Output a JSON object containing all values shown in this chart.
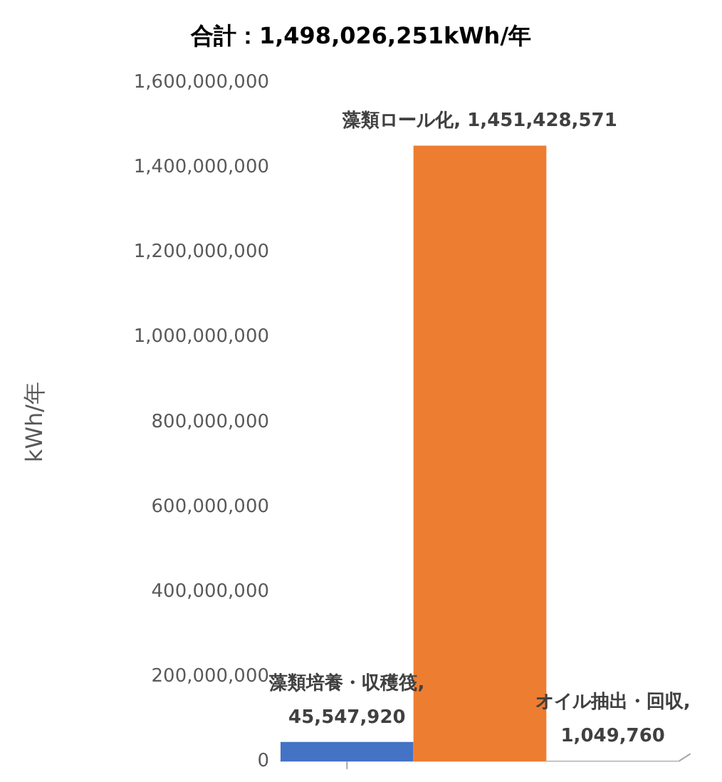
{
  "chart_data": {
    "type": "bar",
    "title": "合計：1,498,026,251kWh/年",
    "ylabel": "kWh/年",
    "categories": [
      null,
      null,
      null
    ],
    "values": [
      45547920,
      1451428571,
      1049760
    ],
    "value_labels": [
      "藻類培養・収穫筏, 45,547,920",
      "藻類ロール化, 1,451,428,571",
      "オイル抽出・回収, 1,049,760"
    ],
    "colors": [
      "#4472c4",
      "#ed7d31",
      "#a5a5a5"
    ],
    "ylim": [
      0,
      1600000000
    ],
    "yticks": [
      0,
      {
        "value": 200000000,
        "label": "200,000,000"
      },
      {
        "value": 400000000,
        "label": "400,000,000"
      },
      {
        "value": 600000000,
        "label": "600,000,000"
      },
      {
        "value": 800000000,
        "label": "800,000,000"
      },
      {
        "value": 1000000000,
        "label": "1,000,000,000"
      },
      {
        "value": 1200000000,
        "label": "1,200,000,000"
      },
      {
        "value": 1400000000,
        "label": "1,400,000,000"
      },
      {
        "value": 1600000000,
        "label": "1,600,000,000"
      }
    ],
    "grid": false,
    "tick_labels": "y"
  }
}
